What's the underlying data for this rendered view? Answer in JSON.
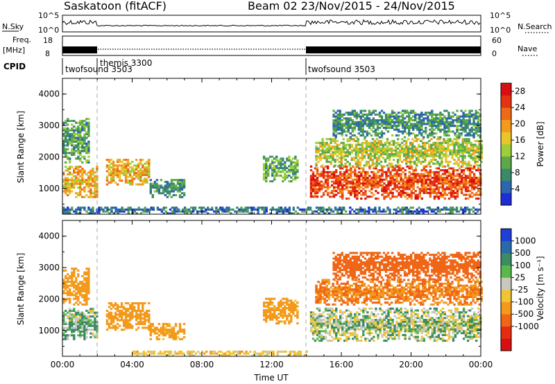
{
  "header": {
    "station": "Saskatoon (fitACF)",
    "beam_date": "Beam 02  23/Nov/2015 - 24/Nov/2015"
  },
  "params": {
    "nsky_label": "N.Sky",
    "nsky_ticks": [
      "10^5",
      "10^0"
    ],
    "nsearch_label": "N.Search",
    "nsearch_ticks": [
      "10^5",
      "10^0"
    ],
    "freq_label": "Freq.",
    "freq_unit": "[MHz]",
    "freq_ticks": [
      "18",
      "8"
    ],
    "nave_label": "Nave",
    "nave_ticks": [
      "60",
      "0"
    ],
    "cpid_label": "CPID",
    "cpid_segments": [
      {
        "start_h": 0,
        "end_h": 2,
        "name": "twofsound 3503"
      },
      {
        "start_h": 2,
        "end_h": 14,
        "name": "themis 3300"
      },
      {
        "start_h": 14,
        "end_h": 24,
        "name": "twofsound 3503"
      }
    ]
  },
  "chart_data": [
    {
      "type": "heatmap",
      "name": "power",
      "ylabel": "Slant Range [km]",
      "xlabel": "",
      "ylim": [
        180,
        4500
      ],
      "xlim_hours": [
        0,
        24
      ],
      "yticks": [
        "1000",
        "2000",
        "3000",
        "4000"
      ],
      "colorbar": {
        "label": "Power [dB]",
        "ticks": [
          "4",
          "8",
          "12",
          "16",
          "20",
          "24",
          "28"
        ],
        "range": [
          0,
          30
        ],
        "colors": [
          "#1f2dd6",
          "#2c66b0",
          "#3a8a6a",
          "#5ca84a",
          "#9ccd3a",
          "#e8c52a",
          "#f39a1c",
          "#ef6a16",
          "#e53213",
          "#d80f10"
        ]
      },
      "echo_regions": [
        {
          "t0": 0.0,
          "t1": 2.0,
          "r0": 700,
          "r1": 1700,
          "value": 18
        },
        {
          "t0": 0.0,
          "t1": 1.5,
          "r0": 1800,
          "r1": 3200,
          "value": 10
        },
        {
          "t0": 2.5,
          "t1": 5.0,
          "r0": 1100,
          "r1": 1900,
          "value": 18
        },
        {
          "t0": 5.0,
          "t1": 7.0,
          "r0": 700,
          "r1": 1300,
          "value": 8
        },
        {
          "t0": 11.5,
          "t1": 13.5,
          "r0": 1200,
          "r1": 2000,
          "value": 10
        },
        {
          "t0": 14.2,
          "t1": 24.0,
          "r0": 650,
          "r1": 1700,
          "value": 24
        },
        {
          "t0": 14.5,
          "t1": 24.0,
          "r0": 1700,
          "r1": 2600,
          "value": 14
        },
        {
          "t0": 15.5,
          "t1": 24.0,
          "r0": 2600,
          "r1": 3500,
          "value": 8
        },
        {
          "t0": 0.0,
          "t1": 24.0,
          "r0": 180,
          "r1": 380,
          "value": 6
        }
      ]
    },
    {
      "type": "heatmap",
      "name": "velocity",
      "ylabel": "Slant Range [km]",
      "xlabel": "Time UT",
      "ylim": [
        180,
        4500
      ],
      "xlim_hours": [
        0,
        24
      ],
      "xticks": [
        "00:00",
        "04:00",
        "08:00",
        "12:00",
        "16:00",
        "20:00",
        "00:00"
      ],
      "yticks": [
        "1000",
        "2000",
        "3000",
        "4000"
      ],
      "colorbar": {
        "label": "Velocity [m s⁻¹]",
        "ticks": [
          "1000",
          "500",
          "100",
          "25",
          "-25",
          "-100",
          "-500",
          "-1000"
        ],
        "colors": [
          "#1f3fd6",
          "#2a6aa8",
          "#3b8b63",
          "#58b84a",
          "#c8c8c0",
          "#f0c432",
          "#f39a1c",
          "#ef6616",
          "#e52c12",
          "#d80f10"
        ]
      },
      "echo_regions": [
        {
          "t0": 0.0,
          "t1": 2.0,
          "r0": 700,
          "r1": 1700,
          "value": 25
        },
        {
          "t0": 0.0,
          "t1": 1.5,
          "r0": 1800,
          "r1": 3000,
          "value": -200
        },
        {
          "t0": 2.5,
          "t1": 5.0,
          "r0": 1000,
          "r1": 1900,
          "value": -200
        },
        {
          "t0": 5.0,
          "t1": 7.0,
          "r0": 700,
          "r1": 1200,
          "value": -150
        },
        {
          "t0": 11.5,
          "t1": 13.5,
          "r0": 1200,
          "r1": 2000,
          "value": -150
        },
        {
          "t0": 14.2,
          "t1": 24.0,
          "r0": 650,
          "r1": 1700,
          "value": 0
        },
        {
          "t0": 14.5,
          "t1": 24.0,
          "r0": 1800,
          "r1": 2600,
          "value": -300
        },
        {
          "t0": 15.5,
          "t1": 24.0,
          "r0": 2600,
          "r1": 3500,
          "value": -400
        },
        {
          "t0": 4.0,
          "t1": 14.0,
          "r0": 180,
          "r1": 350,
          "value": -60
        }
      ]
    }
  ]
}
